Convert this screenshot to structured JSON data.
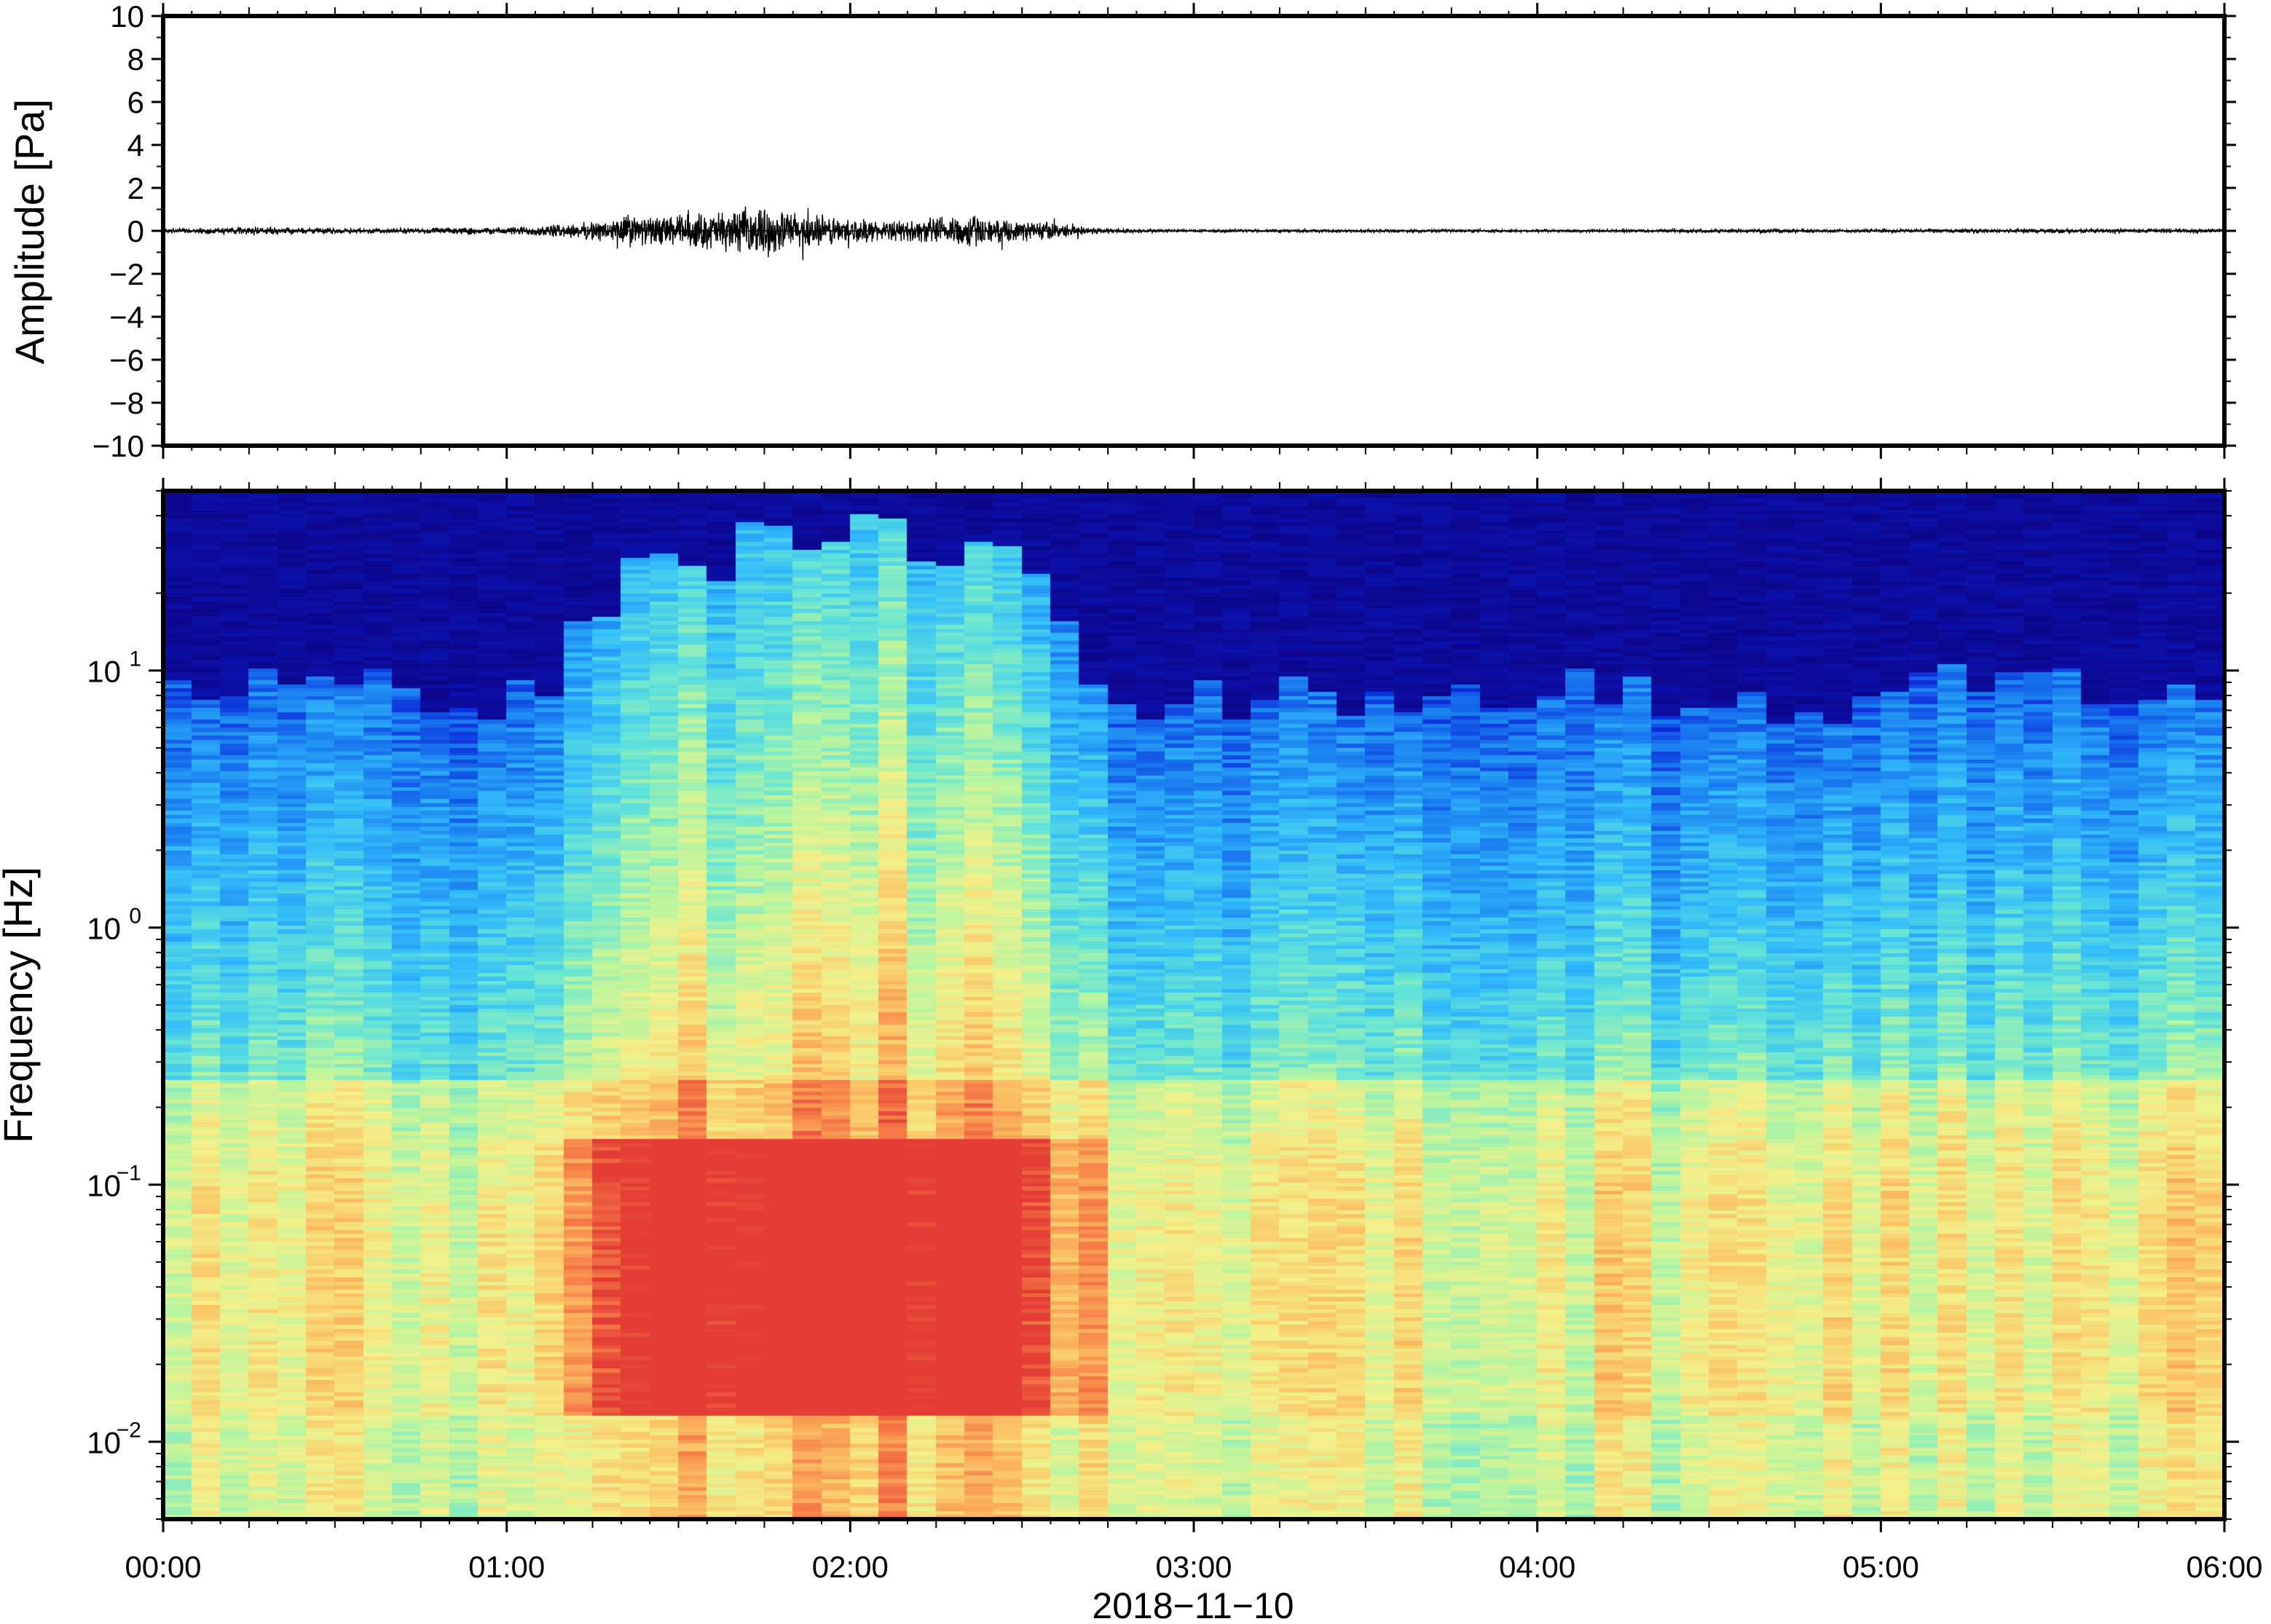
{
  "chart_data": [
    {
      "type": "line",
      "title": "",
      "xlabel": "",
      "ylabel": "Amplitude [Pa]",
      "ylim": [
        -10,
        10
      ],
      "yticks": [
        "10",
        "8",
        "6",
        "4",
        "2",
        "0",
        "−2",
        "−4",
        "−6",
        "−8",
        "−10"
      ],
      "x_range_hours": [
        0,
        6
      ],
      "grid": false,
      "series": [
        {
          "envelope": {
            "x_hours": [
              0.0,
              0.25,
              0.5,
              0.75,
              1.0,
              1.1,
              1.2,
              1.3,
              1.35,
              1.4,
              1.5,
              1.6,
              1.7,
              1.75,
              1.8,
              1.9,
              2.0,
              2.1,
              2.2,
              2.3,
              2.35,
              2.4,
              2.5,
              2.55,
              2.6,
              2.7,
              2.8,
              3.0,
              4.0,
              5.0,
              6.0
            ],
            "amplitude_pa": [
              0.1,
              0.2,
              0.15,
              0.15,
              0.2,
              0.3,
              0.4,
              0.6,
              1.0,
              0.7,
              0.9,
              1.0,
              1.2,
              1.3,
              1.1,
              0.9,
              0.7,
              0.5,
              0.6,
              0.9,
              1.0,
              0.6,
              0.5,
              0.6,
              0.4,
              0.2,
              0.12,
              0.08,
              0.08,
              0.1,
              0.12
            ]
          }
        }
      ]
    },
    {
      "type": "heatmap",
      "title": "",
      "xlabel": "2018−11−10",
      "ylabel": "Frequency [Hz]",
      "yscale": "log",
      "ylim": [
        0.005,
        50
      ],
      "yticks": [
        {
          "value": 10,
          "base": "10",
          "exp": "1"
        },
        {
          "value": 1,
          "base": "10",
          "exp": "0"
        },
        {
          "value": 0.1,
          "base": "10",
          "exp": "−1"
        },
        {
          "value": 0.01,
          "base": "10",
          "exp": "−2"
        }
      ],
      "xticks": [
        {
          "hour": 0,
          "label": "00:00"
        },
        {
          "hour": 1,
          "label": "01:00"
        },
        {
          "hour": 2,
          "label": "02:00"
        },
        {
          "hour": 3,
          "label": "03:00"
        },
        {
          "hour": 4,
          "label": "04:00"
        },
        {
          "hour": 5,
          "label": "05:00"
        },
        {
          "hour": 6,
          "label": "06:00"
        }
      ],
      "x_range_hours": [
        0,
        6
      ],
      "colormap": [
        "#0d0079",
        "#0a1fd6",
        "#1a7ef0",
        "#33bdfa",
        "#66e5d6",
        "#b9f5a0",
        "#f3f08a",
        "#fbc466",
        "#f7844a",
        "#e43d35"
      ],
      "event": {
        "start_hour": 1.1,
        "end_hour": 2.75,
        "peak_band_hz": [
          0.02,
          0.12
        ],
        "upper_edge_hz_during_event": 30
      },
      "background_upper_edge_hz": 8
    }
  ]
}
